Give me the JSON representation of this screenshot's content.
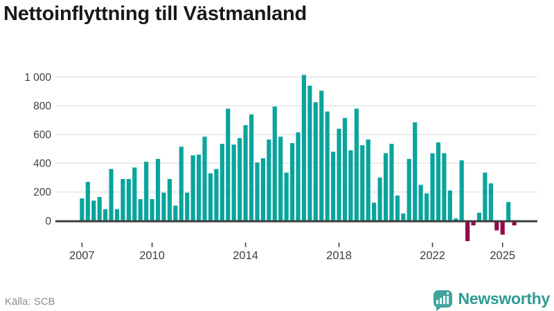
{
  "title": "Nettoinflyttning till Västmanland",
  "source": "Källa: SCB",
  "logo": {
    "brand": "Newsworthy"
  },
  "colors": {
    "positive_bar": "#09a59d",
    "negative_bar": "#930b4d",
    "gridline": "#e3e3e3",
    "zero_line": "#3c3c3c",
    "axis_text": "#3f3f3f",
    "title_text": "#191919",
    "source_text": "#8c8c8c",
    "brand": "#2f9a93"
  },
  "chart_data": {
    "type": "bar",
    "title": "Nettoinflyttning till Västmanland",
    "xlabel": "",
    "ylabel": "",
    "ylim": [
      -150,
      1050
    ],
    "grid": true,
    "legend_position": "none",
    "categories": [
      "2007 Q1",
      "2007 Q2",
      "2007 Q3",
      "2007 Q4",
      "2008 Q1",
      "2008 Q2",
      "2008 Q3",
      "2008 Q4",
      "2009 Q1",
      "2009 Q2",
      "2009 Q3",
      "2009 Q4",
      "2010 Q1",
      "2010 Q2",
      "2010 Q3",
      "2010 Q4",
      "2011 Q1",
      "2011 Q2",
      "2011 Q3",
      "2011 Q4",
      "2012 Q1",
      "2012 Q2",
      "2012 Q3",
      "2012 Q4",
      "2013 Q1",
      "2013 Q2",
      "2013 Q3",
      "2013 Q4",
      "2014 Q1",
      "2014 Q2",
      "2014 Q3",
      "2014 Q4",
      "2015 Q1",
      "2015 Q2",
      "2015 Q3",
      "2015 Q4",
      "2016 Q1",
      "2016 Q2",
      "2016 Q3",
      "2016 Q4",
      "2017 Q1",
      "2017 Q2",
      "2017 Q3",
      "2017 Q4",
      "2018 Q1",
      "2018 Q2",
      "2018 Q3",
      "2018 Q4",
      "2019 Q1",
      "2019 Q2",
      "2019 Q3",
      "2019 Q4",
      "2020 Q1",
      "2020 Q2",
      "2020 Q3",
      "2020 Q4",
      "2021 Q1",
      "2021 Q2",
      "2021 Q3",
      "2021 Q4",
      "2022 Q1",
      "2022 Q2",
      "2022 Q3",
      "2022 Q4",
      "2023 Q1",
      "2023 Q2",
      "2023 Q3",
      "2023 Q4",
      "2024 Q1",
      "2024 Q2",
      "2024 Q3",
      "2024 Q4",
      "2025 Q1",
      "2025 Q2",
      "2025 Q3"
    ],
    "values": [
      155,
      270,
      140,
      165,
      80,
      360,
      80,
      290,
      290,
      370,
      150,
      410,
      150,
      430,
      195,
      290,
      105,
      515,
      195,
      455,
      460,
      585,
      330,
      360,
      535,
      780,
      530,
      575,
      665,
      740,
      405,
      435,
      565,
      795,
      585,
      335,
      540,
      615,
      1015,
      940,
      825,
      905,
      760,
      480,
      640,
      715,
      490,
      780,
      525,
      565,
      125,
      300,
      470,
      535,
      175,
      50,
      430,
      685,
      250,
      190,
      470,
      545,
      470,
      210,
      15,
      420,
      -135,
      -25,
      55,
      335,
      260,
      -60,
      -90,
      130,
      -25
    ],
    "x_ticks": [
      {
        "label": "2007",
        "index": 0
      },
      {
        "label": "2010",
        "index": 12
      },
      {
        "label": "2014",
        "index": 28
      },
      {
        "label": "2018",
        "index": 44
      },
      {
        "label": "2022",
        "index": 60
      },
      {
        "label": "2025",
        "index": 72
      }
    ],
    "y_ticks": [
      {
        "label": "0",
        "value": 0
      },
      {
        "label": "200",
        "value": 200
      },
      {
        "label": "400",
        "value": 400
      },
      {
        "label": "600",
        "value": 600
      },
      {
        "label": "800",
        "value": 800
      },
      {
        "label": "1 000",
        "value": 1000
      }
    ]
  }
}
